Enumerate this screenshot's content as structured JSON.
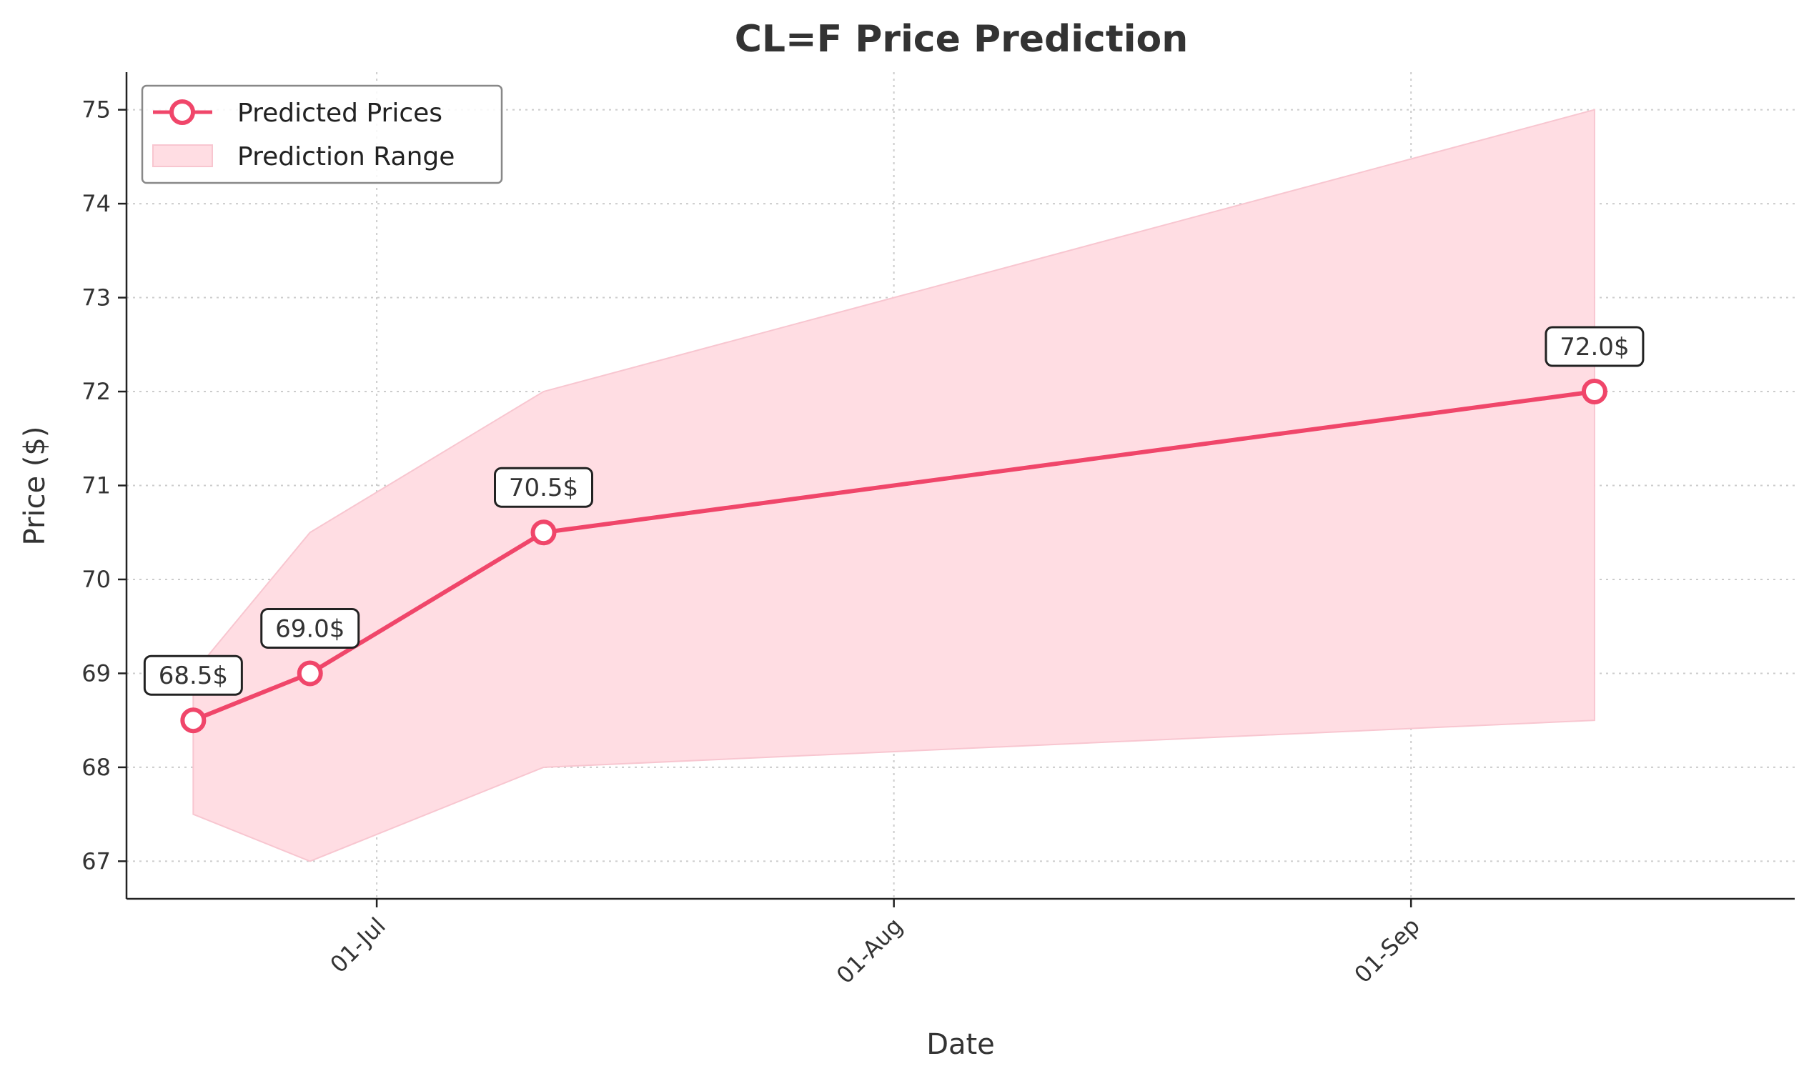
{
  "chart_data": {
    "type": "line",
    "title": "CL=F Price Prediction",
    "xlabel": "Date",
    "ylabel": "Price ($)",
    "x_tick_labels": [
      {
        "date": "2024-07-01",
        "label": "01-Jul"
      },
      {
        "date": "2024-08-01",
        "label": "01-Aug"
      },
      {
        "date": "2024-09-01",
        "label": "01-Sep"
      }
    ],
    "y_ticks": [
      67,
      68,
      69,
      70,
      71,
      72,
      73,
      74,
      75
    ],
    "xlim": [
      "2024-06-16",
      "2024-09-24"
    ],
    "ylim": [
      66.6,
      75.4
    ],
    "grid": true,
    "legend_position": "top-left",
    "series": [
      {
        "name": "Predicted Prices",
        "type": "line",
        "color": "#F0466A",
        "points": [
          {
            "x": "2024-06-20",
            "y": 68.5,
            "label": "68.5$"
          },
          {
            "x": "2024-06-27",
            "y": 69.0,
            "label": "69.0$"
          },
          {
            "x": "2024-07-11",
            "y": 70.5,
            "label": "70.5$"
          },
          {
            "x": "2024-09-12",
            "y": 72.0,
            "label": "72.0$"
          }
        ]
      },
      {
        "name": "Prediction Range",
        "type": "area",
        "color": "#FFDDE3",
        "edge_color": "#F8C6D0",
        "upper": [
          69.0,
          70.5,
          72.0,
          75.0
        ],
        "lower": [
          67.5,
          67.0,
          68.0,
          68.5
        ],
        "x": [
          "2024-06-20",
          "2024-06-27",
          "2024-07-11",
          "2024-09-12"
        ]
      }
    ]
  }
}
